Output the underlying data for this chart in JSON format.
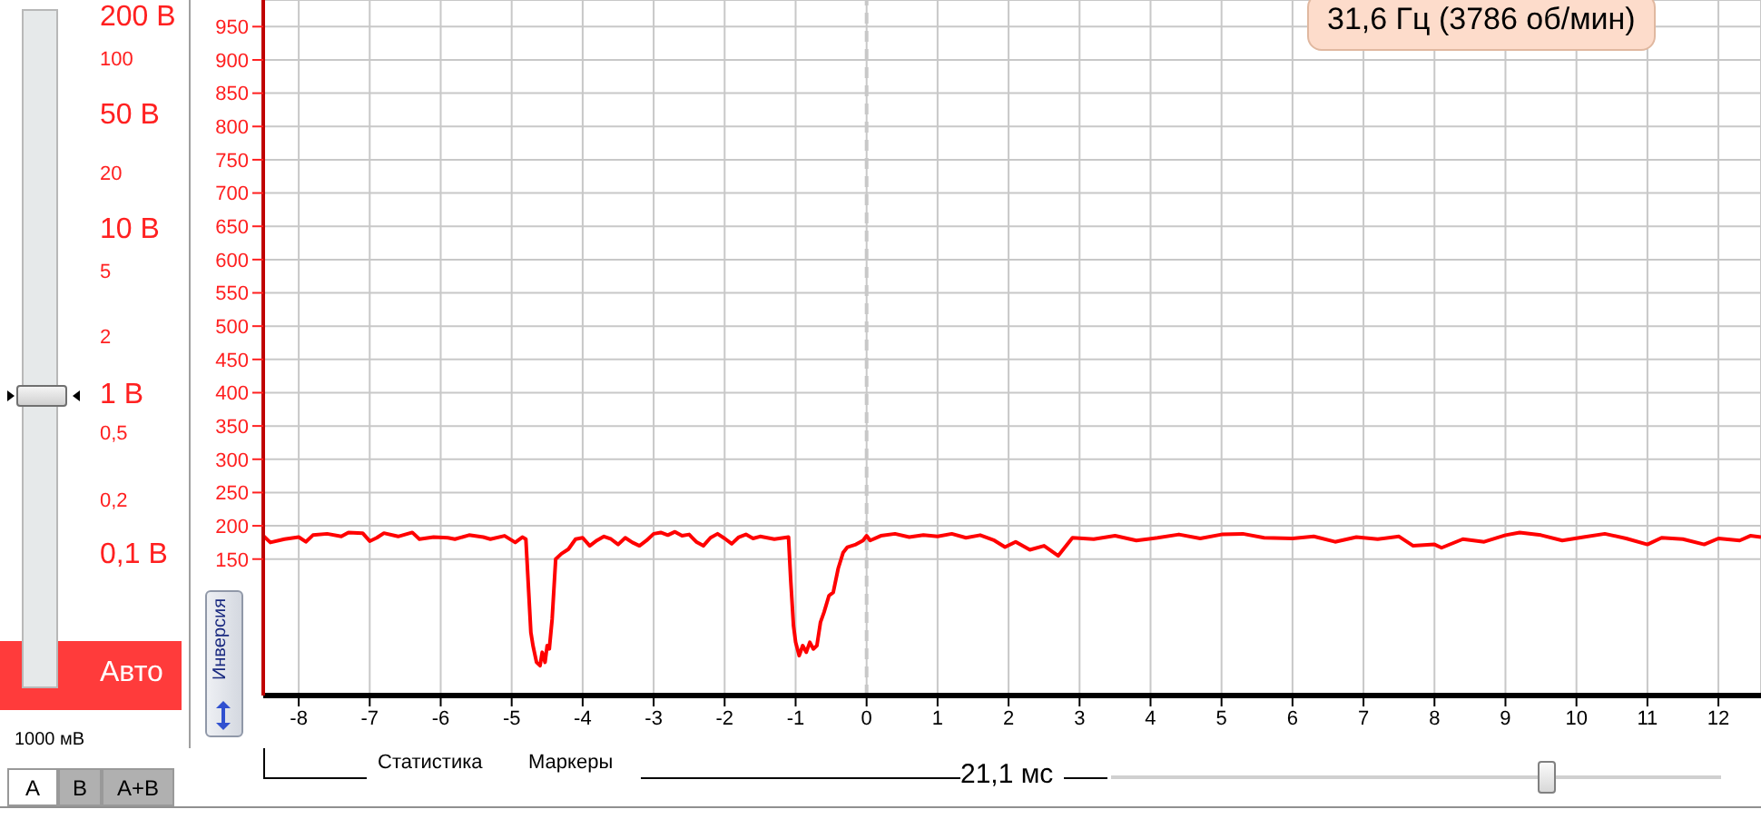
{
  "chart_data": {
    "type": "line",
    "annotations": [
      "200 В",
      "100",
      "50 В",
      "20",
      "10 В",
      "5",
      "2",
      "1 В",
      "0,5",
      "0,2",
      "0,1 В",
      "Авто",
      "1000 мВ",
      "A",
      "B",
      "A+B",
      "Инверсия",
      "Статистика",
      "Маркеры",
      "21,1 мс",
      "31,6 Гц (3786 об/мин)"
    ],
    "series": [
      {
        "color": "#ff0000",
        "x": [
          -8.5,
          -8.4,
          -8.2,
          -8.0,
          -7.9,
          -7.8,
          -7.6,
          -7.4,
          -7.3,
          -7.1,
          -7.0,
          -6.9,
          -6.8,
          -6.6,
          -6.4,
          -6.3,
          -6.1,
          -5.9,
          -5.8,
          -5.6,
          -5.4,
          -5.3,
          -5.1,
          -4.95,
          -4.85,
          -4.8,
          -4.76,
          -4.73,
          -4.7,
          -4.65,
          -4.6,
          -4.57,
          -4.53,
          -4.5,
          -4.47,
          -4.43,
          -4.38,
          -4.3,
          -4.2,
          -4.1,
          -4.0,
          -3.9,
          -3.8,
          -3.7,
          -3.6,
          -3.5,
          -3.4,
          -3.3,
          -3.2,
          -3.1,
          -3.0,
          -2.9,
          -2.8,
          -2.7,
          -2.6,
          -2.5,
          -2.4,
          -2.3,
          -2.2,
          -2.1,
          -2.0,
          -1.9,
          -1.8,
          -1.7,
          -1.6,
          -1.5,
          -1.3,
          -1.1,
          -1.07,
          -1.03,
          -1.0,
          -0.95,
          -0.9,
          -0.85,
          -0.8,
          -0.75,
          -0.7,
          -0.65,
          -0.6,
          -0.53,
          -0.47,
          -0.4,
          -0.33,
          -0.27,
          -0.15,
          -0.05,
          0.0,
          0.05,
          0.2,
          0.4,
          0.6,
          0.8,
          1.0,
          1.2,
          1.4,
          1.6,
          1.8,
          1.95,
          2.1,
          2.3,
          2.5,
          2.7,
          2.9,
          3.2,
          3.5,
          3.8,
          4.1,
          4.4,
          4.7,
          5.0,
          5.3,
          5.6,
          6.0,
          6.3,
          6.6,
          6.9,
          7.2,
          7.5,
          7.7,
          8.0,
          8.1,
          8.4,
          8.7,
          9.0,
          9.2,
          9.5,
          9.8,
          10.1,
          10.4,
          10.7,
          11.0,
          11.2,
          11.5,
          11.8,
          12.0,
          12.3,
          12.45,
          12.6
        ],
        "values": [
          185,
          175,
          180,
          183,
          176,
          186,
          188,
          184,
          190,
          189,
          177,
          182,
          189,
          184,
          190,
          180,
          183,
          182,
          180,
          186,
          183,
          180,
          185,
          175,
          183,
          180,
          100,
          40,
          20,
          -5,
          -10,
          10,
          -5,
          20,
          15,
          60,
          150,
          158,
          165,
          180,
          182,
          170,
          178,
          184,
          180,
          172,
          182,
          175,
          170,
          178,
          188,
          190,
          186,
          191,
          185,
          187,
          176,
          170,
          182,
          188,
          181,
          173,
          183,
          187,
          181,
          184,
          180,
          183,
          120,
          50,
          25,
          5,
          20,
          10,
          25,
          15,
          20,
          55,
          70,
          95,
          100,
          136,
          160,
          168,
          172,
          178,
          185,
          178,
          185,
          188,
          183,
          186,
          184,
          188,
          182,
          186,
          178,
          168,
          176,
          164,
          170,
          155,
          182,
          180,
          185,
          178,
          182,
          187,
          181,
          187,
          188,
          182,
          181,
          184,
          176,
          183,
          180,
          184,
          170,
          172,
          167,
          180,
          176,
          186,
          190,
          186,
          178,
          183,
          188,
          181,
          172,
          182,
          180,
          172,
          181,
          178,
          185,
          183
        ]
      }
    ],
    "xlim": [
      -8.5,
      12.6
    ],
    "xticks": [
      -8,
      -7,
      -6,
      -5,
      -4,
      -3,
      -2,
      -1,
      0,
      1,
      2,
      3,
      4,
      5,
      6,
      7,
      8,
      9,
      10,
      11,
      12
    ],
    "ylim": [
      -55,
      990
    ],
    "yticks": [
      150,
      200,
      250,
      300,
      350,
      400,
      450,
      500,
      550,
      600,
      650,
      700,
      750,
      800,
      850,
      900,
      950
    ],
    "grid": true,
    "marker": "none",
    "line_style": "solid",
    "ref_lines": [
      {
        "axis": "x",
        "value": 0,
        "color": "#c8c8c8",
        "line_style": "dashed"
      }
    ]
  }
}
